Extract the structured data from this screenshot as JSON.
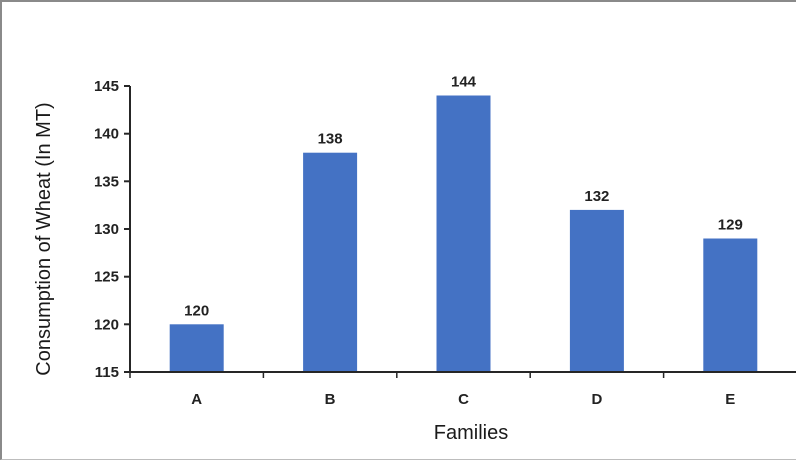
{
  "chart_data": {
    "type": "bar",
    "categories": [
      "A",
      "B",
      "C",
      "D",
      "E"
    ],
    "values": [
      120,
      138,
      144,
      132,
      129
    ],
    "data_labels": [
      "120",
      "138",
      "144",
      "132",
      "129"
    ],
    "xlabel": "Families",
    "ylabel": "Consumption of Wheat (In MT)",
    "ylim": [
      115,
      145
    ],
    "yticks": [
      115,
      120,
      125,
      130,
      135,
      140,
      145
    ],
    "grid": false,
    "legend": "none",
    "bar_color": "#4472C4",
    "axis_color": "#262626"
  }
}
